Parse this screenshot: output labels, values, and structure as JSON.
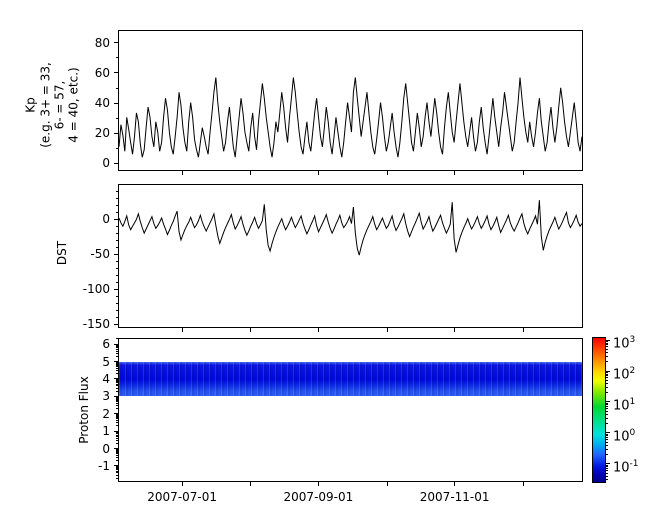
{
  "figure": {
    "background": "#ffffff",
    "axis_color": "#000000",
    "line_color": "#000000"
  },
  "xaxis": {
    "ticks": [
      {
        "pos": 0.138,
        "label": "2007-07-01"
      },
      {
        "pos": 0.284,
        "label": ""
      },
      {
        "pos": 0.431,
        "label": "2007-09-01"
      },
      {
        "pos": 0.58,
        "label": ""
      },
      {
        "pos": 0.724,
        "label": "2007-11-01"
      },
      {
        "pos": 0.873,
        "label": ""
      }
    ]
  },
  "colorbar": {
    "scale": "log",
    "base": "10",
    "exp_range_top_to_bottom": [
      3.1,
      -1.62
    ],
    "ticks": [
      {
        "exp": "3"
      },
      {
        "exp": "2"
      },
      {
        "exp": "1"
      },
      {
        "exp": "0"
      },
      {
        "exp": "-1"
      }
    ],
    "gradient_top_to_bottom": [
      "#fa0000 0%",
      "#ff4600 8%",
      "#ff9100 16%",
      "#ffd800 24%",
      "#eeff00 30%",
      "#7fe800 38%",
      "#00d832 48%",
      "#00e08c 58%",
      "#00e2dc 67%",
      "#00aef0 74%",
      "#2064ff 81%",
      "#0018e0 89%",
      "#0000b4 95%",
      "#000090 100%"
    ]
  },
  "chart_data": [
    {
      "type": "line",
      "name": "kp-index",
      "ylabel": "Kp\n(e.g. 3+ = 33,\n6- = 57,\n4 = 40, etc.)",
      "ylim": [
        -5,
        88.5
      ],
      "yticks_major": [
        0,
        20,
        40,
        60,
        80
      ],
      "yticks_minor": [
        10,
        30,
        50,
        70
      ],
      "values": [
        10,
        25,
        18,
        7,
        30,
        22,
        13,
        5,
        17,
        33,
        27,
        12,
        3,
        8,
        23,
        37,
        30,
        17,
        10,
        27,
        20,
        7,
        13,
        30,
        43,
        35,
        20,
        10,
        5,
        17,
        30,
        47,
        38,
        23,
        13,
        7,
        27,
        40,
        30,
        15,
        8,
        3,
        13,
        23,
        17,
        10,
        5,
        20,
        33,
        47,
        57,
        40,
        27,
        17,
        7,
        13,
        27,
        37,
        23,
        10,
        3,
        17,
        30,
        43,
        33,
        20,
        13,
        7,
        23,
        33,
        17,
        8,
        27,
        40,
        53,
        43,
        30,
        20,
        10,
        3,
        13,
        27,
        20,
        33,
        47,
        37,
        23,
        13,
        30,
        43,
        57,
        47,
        33,
        20,
        10,
        5,
        17,
        27,
        13,
        7,
        20,
        33,
        43,
        30,
        17,
        10,
        23,
        37,
        27,
        13,
        5,
        17,
        30,
        20,
        10,
        3,
        13,
        27,
        40,
        30,
        20,
        47,
        57,
        43,
        30,
        17,
        27,
        37,
        47,
        33,
        20,
        10,
        5,
        15,
        27,
        40,
        30,
        17,
        7,
        13,
        23,
        33,
        20,
        10,
        3,
        13,
        27,
        43,
        53,
        40,
        27,
        13,
        7,
        20,
        33,
        23,
        10,
        17,
        30,
        40,
        27,
        17,
        30,
        43,
        33,
        20,
        10,
        5,
        23,
        37,
        47,
        33,
        20,
        13,
        27,
        40,
        53,
        40,
        27,
        17,
        10,
        20,
        30,
        17,
        7,
        13,
        27,
        37,
        23,
        13,
        5,
        17,
        30,
        43,
        30,
        20,
        10,
        23,
        33,
        47,
        37,
        27,
        17,
        7,
        13,
        27,
        40,
        57,
        43,
        30,
        20,
        13,
        27,
        17,
        10,
        20,
        33,
        43,
        27,
        17,
        7,
        13,
        27,
        37,
        23,
        13,
        23,
        37,
        50,
        40,
        27,
        17,
        10,
        20,
        30,
        40,
        27,
        13,
        7,
        17
      ]
    },
    {
      "type": "line",
      "name": "dst-index",
      "ylabel": "DST",
      "ylim": [
        -155,
        50
      ],
      "yticks_major": [
        0,
        -50,
        -100,
        -150
      ],
      "yticks_minor": [
        40,
        30,
        20,
        10,
        -10,
        -20,
        -30,
        -40,
        -60,
        -70,
        -80,
        -90,
        -110,
        -120,
        -130,
        -140
      ],
      "values": [
        2,
        -5,
        -10,
        -3,
        5,
        -8,
        -15,
        -10,
        -5,
        0,
        8,
        -3,
        -12,
        -20,
        -14,
        -8,
        -2,
        4,
        -6,
        -13,
        -9,
        -4,
        2,
        -7,
        -14,
        -22,
        -16,
        -9,
        -3,
        5,
        12,
        -18,
        -30,
        -22,
        -15,
        -9,
        -4,
        3,
        -5,
        -12,
        -8,
        -2,
        6,
        -4,
        -11,
        -17,
        -11,
        -5,
        1,
        8,
        -9,
        -24,
        -35,
        -27,
        -19,
        -12,
        -6,
        0,
        7,
        -5,
        -14,
        -9,
        -3,
        4,
        -7,
        -16,
        -23,
        -17,
        -10,
        -4,
        3,
        -6,
        -13,
        -8,
        -2,
        22,
        -15,
        -38,
        -46,
        -35,
        -26,
        -18,
        -11,
        -5,
        1,
        -8,
        -15,
        -10,
        -4,
        3,
        -5,
        -12,
        -7,
        -1,
        5,
        -6,
        -14,
        -21,
        -15,
        -8,
        -2,
        5,
        -9,
        -18,
        -12,
        -6,
        0,
        7,
        -4,
        -13,
        -20,
        -14,
        -7,
        -1,
        6,
        -5,
        -12,
        -8,
        -3,
        4,
        -6,
        18,
        -20,
        -42,
        -52,
        -40,
        -30,
        -22,
        -15,
        -9,
        -3,
        4,
        -7,
        -15,
        -10,
        -4,
        2,
        -6,
        -13,
        -9,
        -2,
        5,
        -8,
        -16,
        -11,
        -5,
        1,
        8,
        -6,
        -17,
        -25,
        -18,
        -11,
        -5,
        2,
        9,
        -4,
        -14,
        -9,
        -3,
        4,
        -8,
        -17,
        -12,
        -6,
        0,
        6,
        -5,
        -13,
        -20,
        -14,
        -7,
        25,
        -28,
        -48,
        -37,
        -27,
        -19,
        -12,
        -6,
        1,
        -7,
        -14,
        -9,
        -3,
        4,
        -6,
        -13,
        -8,
        -2,
        5,
        -7,
        -15,
        -10,
        -4,
        3,
        -9,
        -19,
        -13,
        -7,
        -1,
        6,
        -5,
        -12,
        -17,
        -11,
        -5,
        2,
        8,
        -6,
        -15,
        -21,
        -14,
        -8,
        -2,
        5,
        -7,
        28,
        -25,
        -45,
        -33,
        -24,
        -16,
        -10,
        -4,
        3,
        -6,
        -14,
        -9,
        -3,
        4,
        10,
        -5,
        -12,
        -7,
        -1,
        6,
        -4,
        -10,
        -6
      ]
    },
    {
      "type": "heatmap",
      "name": "proton-flux",
      "ylabel": "Proton Flux",
      "ylim": [
        -1.92,
        6.35
      ],
      "yticks_major": [
        -1,
        0,
        1,
        2,
        3,
        4,
        5,
        6
      ],
      "yticks_minor_mode": "log-decades",
      "band": {
        "y_from": 3,
        "y_to": 5,
        "gradient_top_to_bottom": [
          "#4a6cf4 0%",
          "#0b16e0 9%",
          "#0008da 52%",
          "#0f2ee6 70%",
          "#2450ef 84%",
          "#2e5cf2 100%"
        ],
        "stripe_color": "rgba(255,255,255,0.12)"
      }
    }
  ]
}
